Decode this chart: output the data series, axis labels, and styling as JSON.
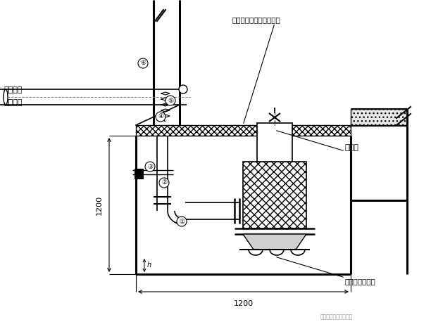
{
  "bg_color": "#ffffff",
  "label_left_1": "就近接入",
  "label_left_2": "市政雨水",
  "label_top_right": "集水坑，坑顶放置鑰盖板",
  "label_pump": "潜污泵",
  "label_support": "潜污泵钉制支架",
  "label_watermark": "城市地下综合管廊建设",
  "dim_v": "1200",
  "dim_h": "1200",
  "dim_h_label": "h",
  "figsize": [
    6.12,
    4.68
  ],
  "dpi": 100
}
